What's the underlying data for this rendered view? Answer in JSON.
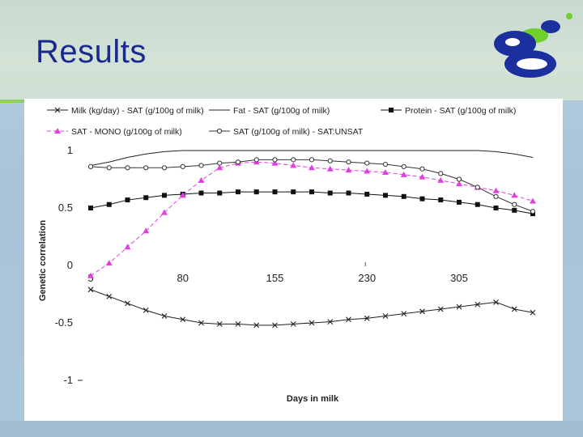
{
  "slide": {
    "title": "Results"
  },
  "logo": {
    "icon": "logo-icon",
    "colors": [
      "#1b2f9e",
      "#6fd02c"
    ]
  },
  "chart_data": {
    "type": "line",
    "ylabel": "Genetic correlation",
    "xlabel": "Days in milk",
    "x_ticks": [
      "5",
      "80",
      "155",
      "230",
      "305"
    ],
    "y_ticks": [
      "1",
      "0.5",
      "0",
      "-0.5",
      "-1"
    ],
    "ylim": [
      -1,
      1
    ],
    "xlim": [
      5,
      365
    ],
    "grid": false,
    "legend_position": "top",
    "x": [
      5,
      20,
      35,
      50,
      65,
      80,
      95,
      110,
      125,
      140,
      155,
      170,
      185,
      200,
      215,
      230,
      245,
      260,
      275,
      290,
      305,
      320,
      335,
      350,
      365
    ],
    "series": [
      {
        "name": "Milk (kg/day) - SAT (g/100g of milk)",
        "marker": "x",
        "color": "#222222",
        "values": [
          -0.21,
          -0.27,
          -0.33,
          -0.39,
          -0.44,
          -0.47,
          -0.5,
          -0.51,
          -0.51,
          -0.52,
          -0.52,
          -0.51,
          -0.5,
          -0.49,
          -0.47,
          -0.46,
          -0.44,
          -0.42,
          -0.4,
          -0.38,
          -0.36,
          -0.34,
          -0.32,
          -0.38,
          -0.41
        ]
      },
      {
        "name": "Fat - SAT (g/100g of milk)",
        "marker": "none",
        "color": "#222222",
        "values": [
          0.87,
          0.9,
          0.94,
          0.97,
          0.99,
          1.0,
          1.0,
          1.0,
          1.0,
          1.0,
          1.0,
          1.0,
          1.0,
          1.0,
          1.0,
          1.0,
          1.0,
          1.0,
          1.0,
          1.0,
          1.0,
          1.0,
          0.99,
          0.97,
          0.94
        ]
      },
      {
        "name": "Protein - SAT (g/100g of milk)",
        "marker": "square",
        "color": "#111111",
        "values": [
          0.5,
          0.53,
          0.57,
          0.59,
          0.61,
          0.62,
          0.63,
          0.63,
          0.64,
          0.64,
          0.64,
          0.64,
          0.64,
          0.63,
          0.63,
          0.62,
          0.61,
          0.6,
          0.58,
          0.57,
          0.55,
          0.53,
          0.5,
          0.48,
          0.45
        ]
      },
      {
        "name": "SAT - MONO (g/100g of milk)",
        "marker": "triangle",
        "color": "#e040e0",
        "values": [
          -0.09,
          0.02,
          0.16,
          0.3,
          0.46,
          0.61,
          0.74,
          0.85,
          0.89,
          0.9,
          0.89,
          0.87,
          0.85,
          0.84,
          0.83,
          0.82,
          0.81,
          0.79,
          0.77,
          0.74,
          0.71,
          0.68,
          0.65,
          0.61,
          0.56
        ]
      },
      {
        "name": "SAT (g/100g of milk) - SAT:UNSAT",
        "marker": "circle",
        "color": "#333333",
        "values": [
          0.86,
          0.85,
          0.85,
          0.85,
          0.85,
          0.86,
          0.87,
          0.89,
          0.9,
          0.92,
          0.92,
          0.92,
          0.92,
          0.91,
          0.9,
          0.89,
          0.88,
          0.86,
          0.84,
          0.8,
          0.75,
          0.68,
          0.6,
          0.53,
          0.47
        ]
      }
    ]
  }
}
